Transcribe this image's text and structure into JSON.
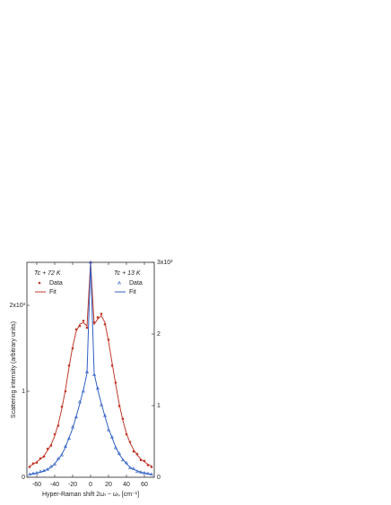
{
  "chart_data": {
    "type": "scatter",
    "xlabel": "Hyper-Raman shift  2ωₗ − ωₛ [cm⁻¹]",
    "ylabel": "Scattering intensity (arbitrary units)",
    "xlim": [
      -71,
      71
    ],
    "xticks": [
      -60,
      -40,
      -20,
      0,
      20,
      40,
      60
    ],
    "ylim": [
      0,
      2.5
    ],
    "yticks": [
      0,
      1,
      {
        "value": 2,
        "label": "2x10³"
      }
    ],
    "y2lim": [
      0,
      3
    ],
    "y2ticks": [
      0,
      1,
      2,
      {
        "value": 3,
        "label": "3x10³"
      }
    ],
    "legend_groups": [
      "Tc + 72 K",
      "Tc + 13 K"
    ],
    "x": [
      -68,
      -64,
      -60,
      -56,
      -52,
      -48,
      -44,
      -40,
      -36,
      -32,
      -28,
      -24,
      -20,
      -16,
      -12,
      -8,
      -4,
      0,
      4,
      8,
      12,
      16,
      20,
      24,
      28,
      32,
      36,
      40,
      44,
      48,
      52,
      56,
      60,
      64,
      68
    ],
    "series": [
      {
        "name": "Data",
        "group": 0,
        "color": "#c0392b",
        "marker": "dot",
        "axis": "y",
        "values": [
          0.12,
          0.16,
          0.17,
          0.22,
          0.24,
          0.33,
          0.37,
          0.5,
          0.6,
          0.82,
          1.0,
          1.3,
          1.5,
          1.72,
          1.76,
          1.82,
          1.74,
          2.5,
          1.8,
          1.86,
          1.9,
          1.78,
          1.6,
          1.3,
          1.1,
          0.83,
          0.68,
          0.5,
          0.41,
          0.3,
          0.27,
          0.2,
          0.19,
          0.14,
          0.12
        ]
      },
      {
        "name": "Fit",
        "group": 0,
        "color": "#c0392b",
        "marker": "line",
        "axis": "y",
        "values": [
          0.13,
          0.15,
          0.18,
          0.21,
          0.25,
          0.31,
          0.38,
          0.48,
          0.62,
          0.8,
          1.02,
          1.28,
          1.52,
          1.7,
          1.78,
          1.8,
          1.76,
          2.5,
          1.78,
          1.84,
          1.88,
          1.8,
          1.58,
          1.33,
          1.08,
          0.85,
          0.66,
          0.51,
          0.4,
          0.32,
          0.26,
          0.21,
          0.18,
          0.15,
          0.13
        ]
      },
      {
        "name": "Data",
        "group": 1,
        "color": "#2f5fc4",
        "marker": "triangle",
        "axis": "y2",
        "values": [
          0.04,
          0.05,
          0.06,
          0.08,
          0.09,
          0.11,
          0.15,
          0.18,
          0.26,
          0.31,
          0.43,
          0.54,
          0.7,
          0.84,
          1.05,
          1.2,
          1.47,
          3.0,
          1.43,
          1.24,
          1.01,
          0.86,
          0.66,
          0.56,
          0.41,
          0.33,
          0.24,
          0.2,
          0.13,
          0.12,
          0.08,
          0.07,
          0.06,
          0.05,
          0.04
        ]
      },
      {
        "name": "Fit",
        "group": 1,
        "color": "#2f5fc4",
        "marker": "line",
        "axis": "y2",
        "values": [
          0.04,
          0.05,
          0.06,
          0.07,
          0.09,
          0.11,
          0.14,
          0.19,
          0.25,
          0.32,
          0.42,
          0.55,
          0.68,
          0.85,
          1.03,
          1.22,
          1.45,
          3.0,
          1.45,
          1.22,
          1.03,
          0.85,
          0.68,
          0.55,
          0.42,
          0.32,
          0.25,
          0.19,
          0.14,
          0.11,
          0.09,
          0.07,
          0.06,
          0.05,
          0.04
        ]
      }
    ]
  }
}
